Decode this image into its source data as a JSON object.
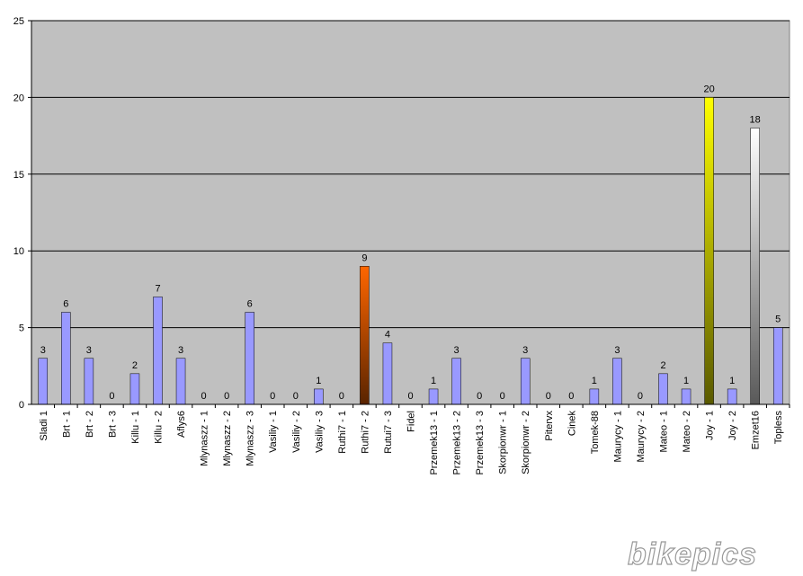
{
  "chart_data": {
    "type": "bar",
    "categories": [
      "Sladi 1",
      "Brt - 1",
      "Brt - 2",
      "Brt - 3",
      "Killu - 1",
      "Killu - 2",
      "Aflys6",
      "Mlynaszz - 1",
      "Mlynaszz - 2",
      "Mlynaszz - 3",
      "Vasiliy - 1",
      "Vasiliy - 2",
      "Vasiliy - 3",
      "Ruthi7 - 1",
      "Ruthi7 - 2",
      "Rutui7 - 3",
      "Fidel",
      "Przemek13 - 1",
      "Przemek13 - 2",
      "Przemek13 - 3",
      "Skorpionwr - 1",
      "Skorpionwr - 2",
      "Pitervx",
      "Cinek",
      "Tomek-88",
      "Maurycy - 1",
      "Maurycy - 2",
      "Mateo - 1",
      "Mateo - 2",
      "Joy - 1",
      "Joy - 2",
      "Emzet16",
      "Topless"
    ],
    "values": [
      3,
      6,
      3,
      0,
      2,
      7,
      3,
      0,
      0,
      6,
      0,
      0,
      1,
      0,
      9,
      4,
      0,
      1,
      3,
      0,
      0,
      3,
      0,
      0,
      1,
      3,
      0,
      2,
      1,
      20,
      1,
      18,
      5
    ],
    "colors": [
      "#9999ff",
      "#9999ff",
      "#9999ff",
      "#9999ff",
      "#9999ff",
      "#9999ff",
      "#9999ff",
      "#9999ff",
      "#9999ff",
      "#9999ff",
      "#9999ff",
      "#9999ff",
      "#9999ff",
      "#9999ff",
      "#ff6600",
      "#9999ff",
      "#9999ff",
      "#9999ff",
      "#9999ff",
      "#9999ff",
      "#9999ff",
      "#9999ff",
      "#9999ff",
      "#9999ff",
      "#9999ff",
      "#9999ff",
      "#9999ff",
      "#9999ff",
      "#9999ff",
      "#ffff00",
      "#9999ff",
      "#ffffff",
      "#9999ff"
    ],
    "ylim": [
      0,
      25
    ],
    "yticks": [
      0,
      5,
      10,
      15,
      20,
      25
    ],
    "grid": true,
    "watermark": "bikepics"
  }
}
